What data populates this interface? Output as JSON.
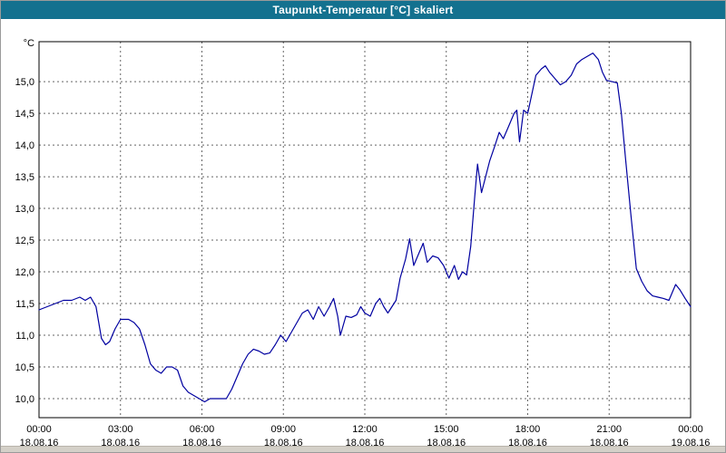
{
  "window": {
    "title": "Taupunkt-Temperatur [°C] skaliert",
    "title_bar_color": "#13718f",
    "title_text_color": "#ffffff"
  },
  "chart_data": {
    "type": "line",
    "title": "Taupunkt-Temperatur [°C] skaliert",
    "xlabel": "",
    "ylabel": "°C",
    "grid": true,
    "grid_color": "#666666",
    "line_color": "#0000a0",
    "frame_color": "#000000",
    "y_range": [
      9.7,
      15.63
    ],
    "x_range_hours": [
      0,
      24
    ],
    "y_ticks": [
      15.0,
      14.5,
      14.0,
      13.5,
      13.0,
      12.5,
      12.0,
      11.5,
      11.0,
      10.5,
      10.0
    ],
    "y_tick_labels": [
      "15,0",
      "14,5",
      "14,0",
      "13,5",
      "13,0",
      "12,5",
      "12,0",
      "11,5",
      "11,0",
      "10,5",
      "10,0"
    ],
    "x_ticks_hours": [
      0,
      3,
      6,
      9,
      12,
      15,
      18,
      21,
      24
    ],
    "x_tick_labels": [
      "00:00",
      "03:00",
      "06:00",
      "09:00",
      "12:00",
      "15:00",
      "18:00",
      "21:00",
      "00:00"
    ],
    "x_date_labels": [
      "18.08.16",
      "18.08.16",
      "18.08.16",
      "18.08.16",
      "18.08.16",
      "18.08.16",
      "18.08.16",
      "18.08.16",
      "19.08.16"
    ],
    "legend": "none",
    "series": [
      {
        "name": "Taupunkt-Temperatur",
        "x_hours": [
          0,
          0.3,
          0.6,
          0.9,
          1.2,
          1.5,
          1.7,
          1.9,
          2.1,
          2.3,
          2.45,
          2.6,
          2.8,
          3.0,
          3.3,
          3.5,
          3.7,
          3.9,
          4.1,
          4.3,
          4.5,
          4.7,
          4.9,
          5.1,
          5.3,
          5.5,
          5.7,
          5.9,
          6.1,
          6.3,
          6.6,
          6.9,
          7.1,
          7.3,
          7.5,
          7.7,
          7.9,
          8.1,
          8.3,
          8.5,
          8.7,
          8.9,
          9.1,
          9.3,
          9.5,
          9.7,
          9.9,
          10.1,
          10.3,
          10.5,
          10.7,
          10.85,
          11.0,
          11.1,
          11.3,
          11.5,
          11.7,
          11.85,
          12.0,
          12.2,
          12.4,
          12.55,
          12.7,
          12.85,
          13.0,
          13.15,
          13.3,
          13.5,
          13.65,
          13.8,
          14.0,
          14.15,
          14.3,
          14.5,
          14.7,
          14.9,
          15.1,
          15.3,
          15.45,
          15.6,
          15.75,
          15.9,
          16.05,
          16.15,
          16.3,
          16.45,
          16.6,
          16.8,
          16.95,
          17.1,
          17.3,
          17.5,
          17.6,
          17.7,
          17.85,
          18.0,
          18.15,
          18.3,
          18.5,
          18.65,
          18.8,
          19.0,
          19.2,
          19.4,
          19.6,
          19.8,
          20.0,
          20.2,
          20.4,
          20.6,
          20.75,
          20.9,
          21.1,
          21.3,
          21.45,
          21.6,
          21.8,
          22.0,
          22.2,
          22.4,
          22.6,
          22.8,
          23.0,
          23.2,
          23.45,
          23.6,
          23.8,
          24.0
        ],
        "values": [
          11.4,
          11.45,
          11.5,
          11.55,
          11.55,
          11.6,
          11.55,
          11.6,
          11.45,
          10.95,
          10.85,
          10.9,
          11.1,
          11.25,
          11.25,
          11.2,
          11.1,
          10.85,
          10.55,
          10.45,
          10.4,
          10.5,
          10.5,
          10.45,
          10.2,
          10.1,
          10.05,
          10.0,
          9.95,
          10.0,
          10.0,
          10.0,
          10.15,
          10.35,
          10.55,
          10.7,
          10.78,
          10.75,
          10.7,
          10.72,
          10.85,
          11.0,
          10.9,
          11.05,
          11.2,
          11.35,
          11.4,
          11.25,
          11.45,
          11.3,
          11.45,
          11.58,
          11.3,
          11.0,
          11.3,
          11.28,
          11.32,
          11.45,
          11.35,
          11.3,
          11.5,
          11.58,
          11.45,
          11.35,
          11.45,
          11.55,
          11.9,
          12.2,
          12.52,
          12.1,
          12.3,
          12.45,
          12.15,
          12.25,
          12.22,
          12.1,
          11.9,
          12.1,
          11.88,
          12.0,
          11.95,
          12.4,
          13.2,
          13.7,
          13.25,
          13.5,
          13.75,
          14.0,
          14.2,
          14.1,
          14.3,
          14.5,
          14.55,
          14.05,
          14.55,
          14.5,
          14.8,
          15.1,
          15.2,
          15.25,
          15.15,
          15.05,
          14.95,
          15.0,
          15.1,
          15.28,
          15.35,
          15.4,
          15.45,
          15.35,
          15.15,
          15.02,
          15.0,
          14.98,
          14.5,
          13.8,
          12.9,
          12.05,
          11.85,
          11.7,
          11.62,
          11.6,
          11.58,
          11.55,
          11.8,
          11.72,
          11.58,
          11.45
        ]
      }
    ]
  }
}
